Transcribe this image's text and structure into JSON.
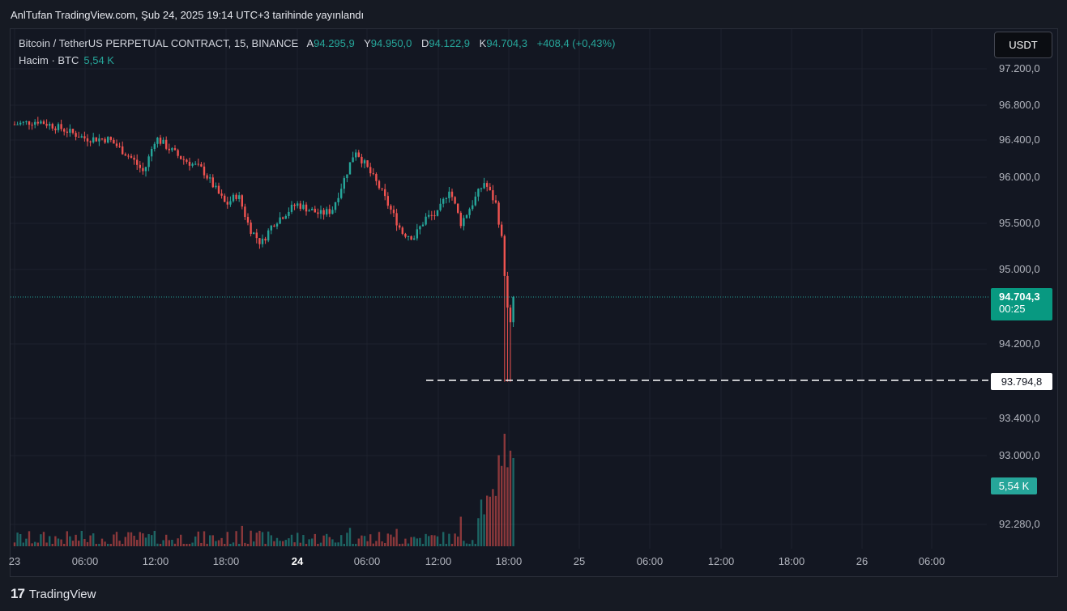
{
  "header": {
    "publish_text": "AnlTufan TradingView.com, Şub 24, 2025 19:14 UTC+3 tarihinde yayınlandı"
  },
  "legend": {
    "symbol": "Bitcoin / TetherUS PERPETUAL CONTRACT, 15, BINANCE",
    "open_label": "A",
    "open": "94.295,9",
    "high_label": "Y",
    "high": "94.950,0",
    "low_label": "D",
    "low": "94.122,9",
    "close_label": "K",
    "close": "94.704,3",
    "change": "+408,4 (+0,43%)",
    "volume_label": "Hacim · BTC",
    "volume_value": "5,54 K"
  },
  "currency_button": "USDT",
  "price_tag": {
    "price": "94.704,3",
    "countdown": "00:25"
  },
  "low_marker": "93.794,8",
  "volume_tag": "5,54 K",
  "footer": {
    "logo": "17",
    "brand": "TradingView"
  },
  "colors": {
    "up": "#26a69a",
    "down": "#ef5350",
    "background": "#131722"
  },
  "chart_data": {
    "type": "candlestick",
    "y_axis_labels": [
      "97.200,0",
      "96.800,0",
      "96.400,0",
      "96.000,0",
      "95.500,0",
      "95.000,0",
      "94.200,0",
      "93.400,0",
      "93.000,0",
      "92.280,0"
    ],
    "x_axis_labels": [
      "23",
      "06:00",
      "12:00",
      "18:00",
      "24",
      "06:00",
      "12:00",
      "18:00",
      "25",
      "06:00",
      "12:00",
      "18:00",
      "26",
      "06:00"
    ],
    "bold_x_labels": [
      "24"
    ],
    "close_path": [
      [
        "23 00:00",
        96580
      ],
      [
        "23 02:00",
        96620
      ],
      [
        "23 04:00",
        96530
      ],
      [
        "23 06:00",
        96420
      ],
      [
        "23 08:00",
        96410
      ],
      [
        "23 10:00",
        96200
      ],
      [
        "23 11:00",
        96050
      ],
      [
        "23 12:00",
        96430
      ],
      [
        "23 14:00",
        96220
      ],
      [
        "23 16:00",
        96080
      ],
      [
        "23 18:00",
        95700
      ],
      [
        "23 19:00",
        95820
      ],
      [
        "23 20:00",
        95450
      ],
      [
        "23 21:00",
        95280
      ],
      [
        "23 22:00",
        95500
      ],
      [
        "24 00:00",
        95710
      ],
      [
        "24 02:00",
        95600
      ],
      [
        "24 03:00",
        95640
      ],
      [
        "24 04:00",
        95960
      ],
      [
        "24 05:00",
        96300
      ],
      [
        "24 07:00",
        95900
      ],
      [
        "24 09:00",
        95400
      ],
      [
        "24 10:00",
        95350
      ],
      [
        "24 11:00",
        95560
      ],
      [
        "24 12:00",
        95600
      ],
      [
        "24 13:00",
        95880
      ],
      [
        "24 14:00",
        95500
      ],
      [
        "24 16:00",
        95950
      ],
      [
        "24 17:00",
        95700
      ],
      [
        "24 17:30",
        95300
      ],
      [
        "24 18:00",
        94500
      ],
      [
        "24 18:15",
        94380
      ],
      [
        "24 18:30",
        94704
      ]
    ],
    "session_low": 93794.8,
    "last_close": 94704.3,
    "volume_last": 5540,
    "volume_peak": 8200
  }
}
